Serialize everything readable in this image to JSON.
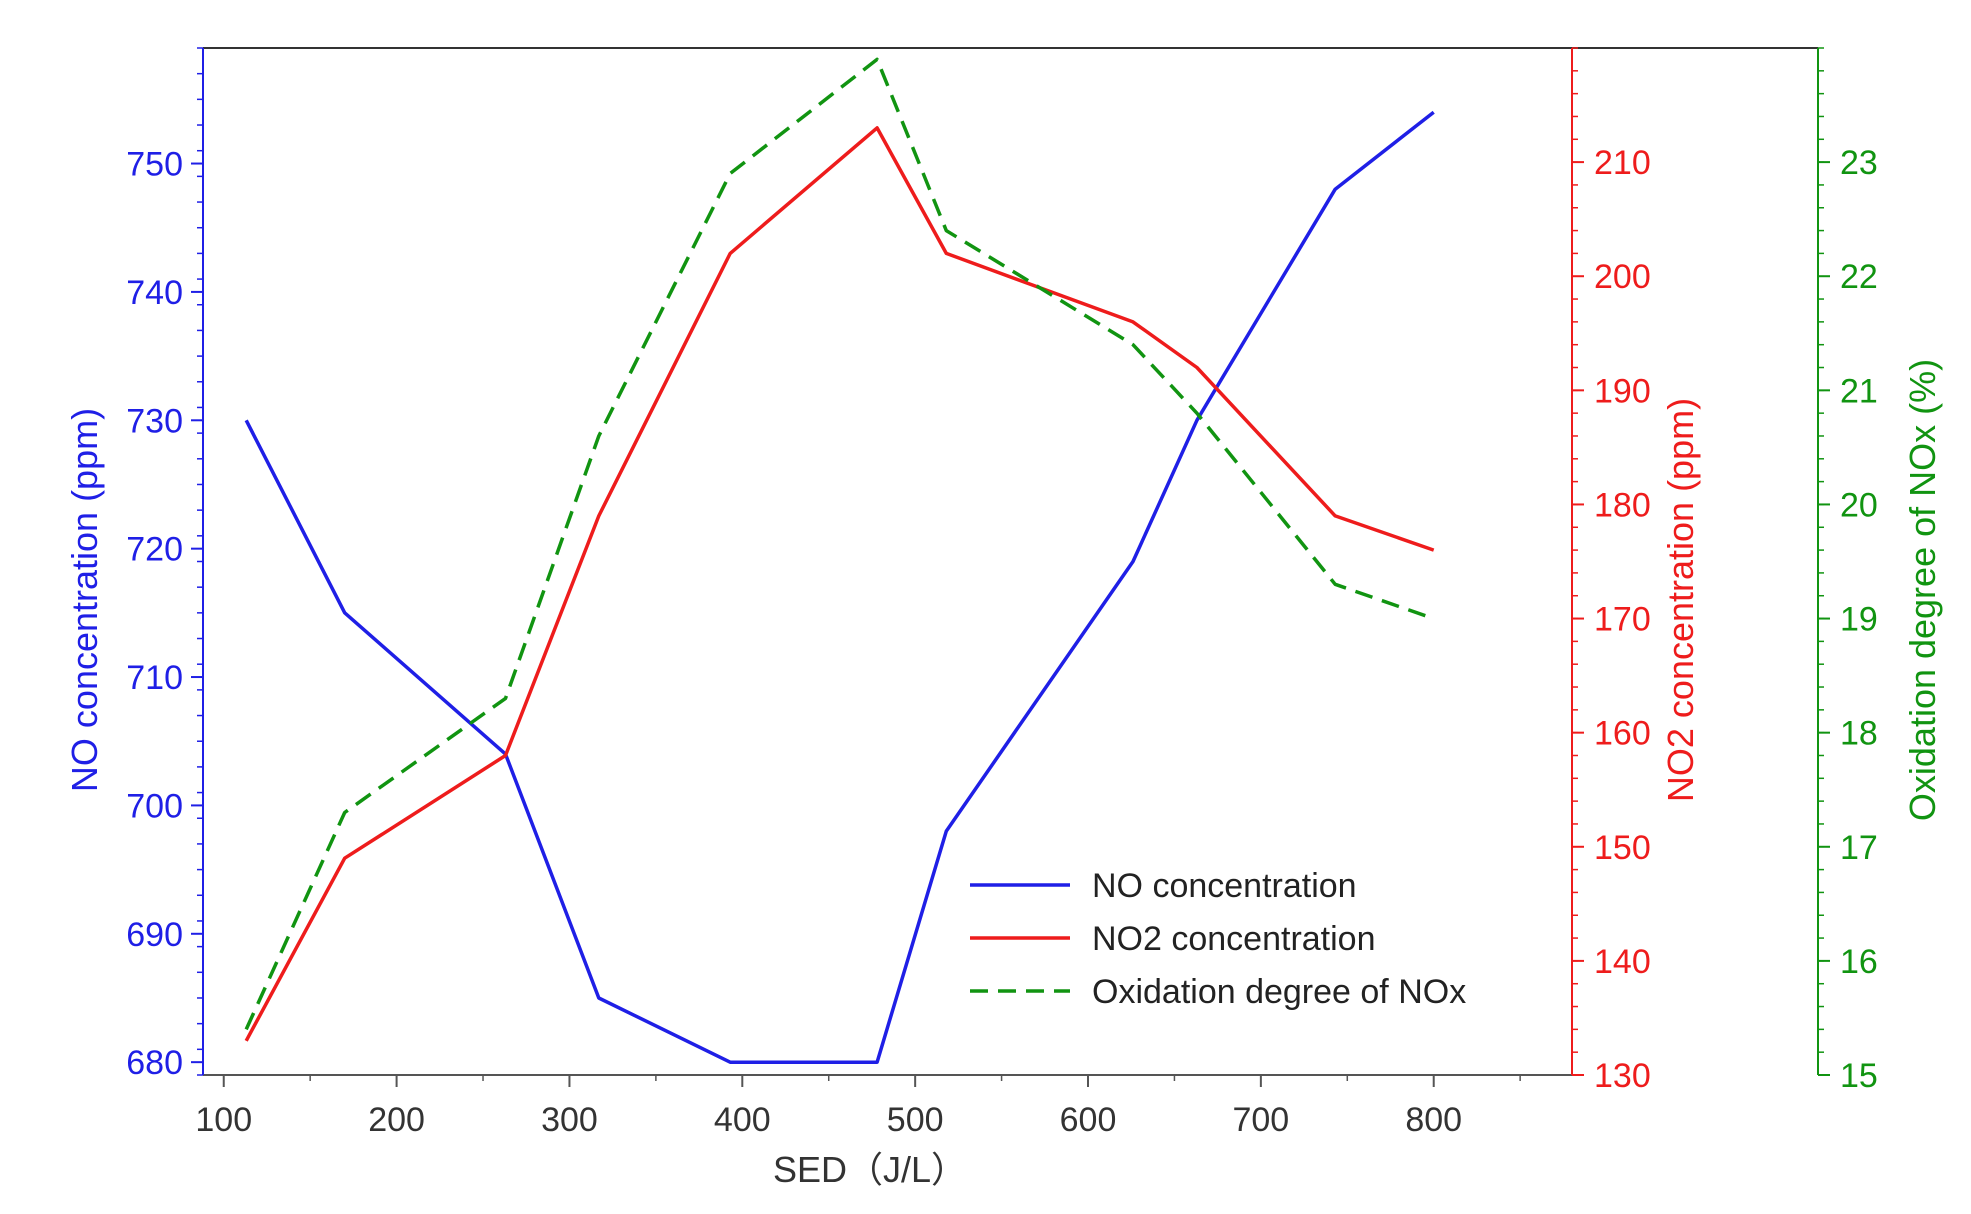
{
  "chart_data": {
    "type": "line",
    "xlabel": "SED（J/L）",
    "xlim": [
      88,
      880
    ],
    "xticks": [
      100,
      200,
      300,
      400,
      500,
      600,
      700,
      800
    ],
    "axes": {
      "left": {
        "label": "NO concentration (ppm)",
        "color": "#1f1fe6",
        "lim": [
          679,
          759
        ],
        "ticks": [
          680,
          690,
          700,
          710,
          720,
          730,
          740,
          750
        ]
      },
      "right1": {
        "label": "NO2 concentration (ppm)",
        "color": "#ee1c1c",
        "lim": [
          130,
          220
        ],
        "ticks": [
          130,
          140,
          150,
          160,
          170,
          180,
          190,
          200,
          210
        ]
      },
      "right2": {
        "label": "Oxidation degree of NOx (%)",
        "color": "#119411",
        "lim": [
          15,
          24
        ],
        "ticks": [
          15,
          16,
          17,
          18,
          19,
          20,
          21,
          22,
          23
        ]
      }
    },
    "series": [
      {
        "name": "NO concentration",
        "axis": "left",
        "color": "#1f1fe6",
        "dash": "solid",
        "x": [
          113,
          170,
          263,
          317,
          393,
          478,
          518,
          626,
          663,
          743,
          800
        ],
        "y": [
          730,
          715,
          704,
          685,
          680,
          680,
          698,
          719,
          730,
          748,
          754
        ]
      },
      {
        "name": "NO2 concentration",
        "axis": "right1",
        "color": "#ee1c1c",
        "dash": "solid",
        "x": [
          113,
          170,
          263,
          317,
          393,
          478,
          518,
          626,
          663,
          743,
          800
        ],
        "y": [
          133,
          149,
          158,
          179,
          202,
          213,
          202,
          196,
          192,
          179,
          176
        ]
      },
      {
        "name": "Oxidation degree of NOx",
        "axis": "right2",
        "color": "#119411",
        "dash": "dashed",
        "x": [
          113,
          170,
          263,
          317,
          393,
          478,
          518,
          626,
          663,
          743,
          800
        ],
        "y": [
          15.4,
          17.3,
          18.3,
          20.6,
          22.9,
          23.9,
          22.4,
          21.4,
          20.8,
          19.3,
          19.0
        ]
      }
    ],
    "legend": {
      "position": "bottom-center",
      "entries": [
        "NO concentration",
        "NO2 concentration",
        "Oxidation degree of NOx"
      ]
    }
  }
}
